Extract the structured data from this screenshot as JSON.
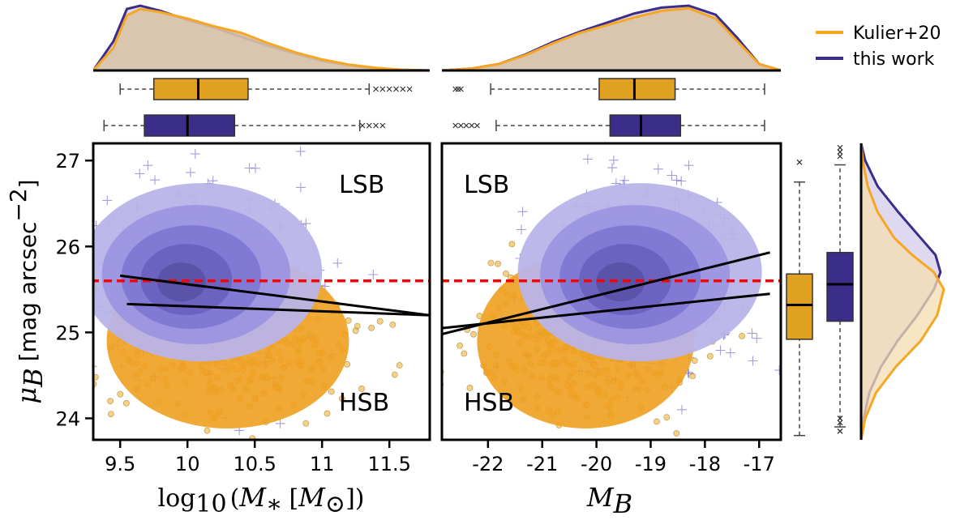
{
  "colors": {
    "kulier": "#f5a623",
    "kulier_box": "#e0a020",
    "thiswork": "#3b2d8a",
    "thiswork_fill": "#7b73d6",
    "scatter_orange": "#f0b030",
    "scatter_purple": "#5a4fb8",
    "kde_fill": "#d9c2a8",
    "threshold": "#ff0000"
  },
  "chart_data": [
    {
      "id": "mass-panel",
      "type": "scatter",
      "xlabel": "log10 (M* [M⊙])",
      "ylabel": "μB [mag arcsec⁻²]",
      "xlim": [
        9.3,
        11.8
      ],
      "ylim": [
        23.75,
        27.2
      ],
      "xticks": [
        9.5,
        10,
        10.5,
        11,
        11.5
      ],
      "xtick_labels": [
        "9.5",
        "10",
        "10.5",
        "11",
        "11.5"
      ],
      "yticks": [
        24,
        25,
        26,
        27
      ],
      "ytick_labels": [
        "24",
        "25",
        "26",
        "27"
      ],
      "threshold_y": 25.6,
      "regions": {
        "upper": "LSB",
        "lower": "HSB"
      },
      "fit_lines": [
        {
          "name": "this work fit",
          "x": [
            9.5,
            11.8
          ],
          "y": [
            25.66,
            25.2
          ]
        },
        {
          "name": "Kulier+20 fit",
          "x": [
            9.55,
            11.8
          ],
          "y": [
            25.33,
            25.2
          ]
        }
      ],
      "series": [
        {
          "name": "Kulier+20",
          "marker": "circle",
          "center": [
            10.3,
            24.9
          ],
          "spread": [
            0.45,
            0.45
          ],
          "n": 380
        },
        {
          "name": "this work",
          "marker": "plus",
          "center": [
            10.1,
            25.7
          ],
          "spread": [
            0.4,
            0.55
          ],
          "n": 320
        }
      ],
      "boxplots": [
        {
          "name": "Kulier+20",
          "whisker_low": 9.5,
          "q1": 9.75,
          "median": 10.08,
          "q3": 10.45,
          "whisker_high": 11.35,
          "outliers": [
            11.4,
            11.45,
            11.5,
            11.55,
            11.6,
            11.65
          ]
        },
        {
          "name": "this work",
          "whisker_low": 9.38,
          "q1": 9.68,
          "median": 10.0,
          "q3": 10.35,
          "whisker_high": 11.28,
          "outliers": [
            11.3,
            11.35,
            11.4,
            11.45
          ]
        }
      ],
      "kde": {
        "Kulier+20": {
          "x": [
            9.3,
            9.45,
            9.55,
            9.65,
            9.8,
            10.0,
            10.2,
            10.4,
            10.6,
            10.8,
            11.0,
            11.2,
            11.4,
            11.6,
            11.8
          ],
          "y": [
            0.0,
            0.35,
            0.85,
            0.95,
            0.9,
            0.8,
            0.68,
            0.58,
            0.42,
            0.28,
            0.17,
            0.09,
            0.04,
            0.01,
            0.0
          ]
        },
        "this work": {
          "x": [
            9.3,
            9.45,
            9.55,
            9.65,
            9.8,
            10.0,
            10.2,
            10.4,
            10.6,
            10.8,
            11.0,
            11.2,
            11.4,
            11.6,
            11.8
          ],
          "y": [
            0.0,
            0.45,
            0.95,
            1.0,
            0.92,
            0.78,
            0.66,
            0.52,
            0.38,
            0.26,
            0.15,
            0.08,
            0.03,
            0.01,
            0.0
          ]
        }
      }
    },
    {
      "id": "mag-panel",
      "type": "scatter",
      "xlabel": "MB",
      "xlim": [
        -22.85,
        -16.6
      ],
      "ylim": [
        23.75,
        27.2
      ],
      "xticks": [
        -22,
        -21,
        -20,
        -19,
        -18,
        -17
      ],
      "xtick_labels": [
        "-22",
        "-21",
        "-20",
        "-19",
        "-18",
        "-17"
      ],
      "threshold_y": 25.6,
      "regions": {
        "upper": "LSB",
        "lower": "HSB"
      },
      "fit_lines": [
        {
          "name": "this work fit",
          "x": [
            -22.85,
            -16.8
          ],
          "y": [
            24.98,
            25.93
          ]
        },
        {
          "name": "Kulier+20 fit",
          "x": [
            -22.85,
            -16.8
          ],
          "y": [
            25.05,
            25.45
          ]
        }
      ],
      "series": [
        {
          "name": "Kulier+20",
          "marker": "circle",
          "center": [
            -20.2,
            24.9
          ],
          "spread": [
            1.0,
            0.45
          ],
          "n": 380
        },
        {
          "name": "this work",
          "marker": "plus",
          "center": [
            -19.2,
            25.7
          ],
          "spread": [
            1.0,
            0.55
          ],
          "n": 320
        }
      ],
      "boxplots": [
        {
          "name": "Kulier+20",
          "whisker_low": -21.95,
          "q1": -19.95,
          "median": -19.3,
          "q3": -18.55,
          "whisker_high": -16.9,
          "outliers": [
            -22.6,
            -22.55,
            -22.5
          ]
        },
        {
          "name": "this work",
          "whisker_low": -21.85,
          "q1": -19.75,
          "median": -19.18,
          "q3": -18.45,
          "whisker_high": -16.9,
          "outliers": [
            -22.6,
            -22.5,
            -22.4,
            -22.3,
            -22.2
          ]
        }
      ],
      "kde": {
        "Kulier+20": {
          "x": [
            -22.85,
            -22.3,
            -21.8,
            -21.3,
            -20.8,
            -20.3,
            -19.8,
            -19.3,
            -18.8,
            -18.3,
            -17.8,
            -17.4,
            -17.0,
            -16.6
          ],
          "y": [
            0.0,
            0.03,
            0.1,
            0.24,
            0.42,
            0.58,
            0.7,
            0.82,
            0.92,
            0.96,
            0.8,
            0.45,
            0.1,
            0.0
          ]
        },
        "this work": {
          "x": [
            -22.85,
            -22.3,
            -21.8,
            -21.3,
            -20.8,
            -20.3,
            -19.8,
            -19.3,
            -18.8,
            -18.3,
            -17.8,
            -17.4,
            -17.0,
            -16.6
          ],
          "y": [
            0.0,
            0.03,
            0.1,
            0.25,
            0.44,
            0.6,
            0.74,
            0.88,
            0.97,
            1.0,
            0.86,
            0.5,
            0.1,
            0.0
          ]
        }
      }
    },
    {
      "id": "mu-marginal",
      "type": "area",
      "ylim": [
        23.75,
        27.2
      ],
      "boxplots": [
        {
          "name": "Kulier+20",
          "whisker_low": 23.8,
          "q1": 24.92,
          "median": 25.32,
          "q3": 25.68,
          "whisker_high": 26.75,
          "outliers": [
            26.98
          ]
        },
        {
          "name": "this work",
          "whisker_low": 23.9,
          "q1": 25.13,
          "median": 25.56,
          "q3": 25.93,
          "whisker_high": 26.95,
          "outliers": [
            23.85,
            23.95,
            24.0,
            27.05,
            27.1,
            27.15
          ]
        }
      ],
      "kde": {
        "Kulier+20": {
          "y": [
            23.75,
            24.0,
            24.3,
            24.6,
            24.9,
            25.2,
            25.5,
            25.7,
            25.9,
            26.1,
            26.4,
            26.7,
            27.0,
            27.2
          ],
          "d": [
            0.0,
            0.05,
            0.18,
            0.42,
            0.72,
            0.92,
            1.0,
            0.88,
            0.62,
            0.4,
            0.2,
            0.08,
            0.02,
            0.0
          ]
        },
        "this work": {
          "y": [
            23.75,
            24.0,
            24.3,
            24.6,
            24.9,
            25.2,
            25.5,
            25.7,
            25.9,
            26.1,
            26.4,
            26.7,
            27.0,
            27.2
          ],
          "d": [
            0.0,
            0.03,
            0.1,
            0.24,
            0.44,
            0.68,
            0.88,
            0.96,
            0.9,
            0.72,
            0.45,
            0.2,
            0.05,
            0.0
          ]
        }
      }
    }
  ],
  "labels": {
    "legend_kulier": "Kulier+20",
    "legend_thiswork": "this work",
    "region_lsb": "LSB",
    "region_hsb": "HSB",
    "ylabel_mu": "μ",
    "ylabel_mu_sub": "B",
    "ylabel_rest": "[mag arcsec",
    "ylabel_exp": "−2",
    "ylabel_close": "]",
    "xlabel_log": "log",
    "xlabel_log_sub": "10",
    "xlabel_paren_open": "(",
    "xlabel_M": "M",
    "xlabel_star_sub": "∗",
    "xlabel_bracket": "[",
    "xlabel_sun_sub": "⊙",
    "xlabel_bracket_close": "])",
    "xlabel_MB": "M",
    "xlabel_MB_sub": "B"
  }
}
